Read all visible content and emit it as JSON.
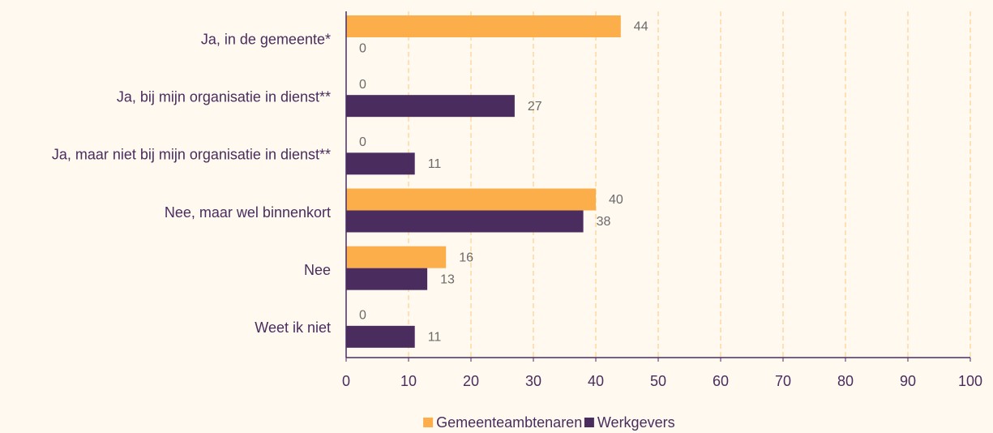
{
  "chart_data": {
    "type": "bar",
    "orientation": "horizontal",
    "categories": [
      "Ja, in de gemeente*",
      "Ja, bij mijn organisatie in dienst**",
      "Ja, maar niet bij mijn organisatie in dienst**",
      "Nee, maar wel binnenkort",
      "Nee",
      "Weet ik niet"
    ],
    "series": [
      {
        "name": "Gemeenteambtenaren",
        "color": "#fbae4a",
        "values": [
          44,
          0,
          0,
          40,
          16,
          0
        ]
      },
      {
        "name": "Werkgevers",
        "color": "#4a2d5e",
        "values": [
          0,
          27,
          11,
          38,
          13,
          11
        ]
      }
    ],
    "xlim": [
      0,
      100
    ],
    "xticks": [
      0,
      10,
      20,
      30,
      40,
      50,
      60,
      70,
      80,
      90,
      100
    ],
    "grid": true,
    "legend": "bottom"
  }
}
